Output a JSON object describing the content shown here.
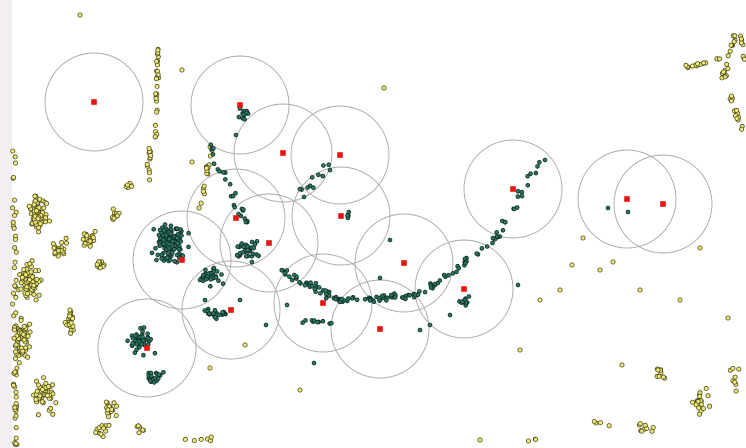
{
  "map": {
    "background_color": "#ffffff",
    "colors": {
      "circle_stroke": "#a8a8a8",
      "center_marker": "#e8140e",
      "point_fill_green": "#2f7a63",
      "point_stroke_green": "#0b2a24",
      "point_fill_yellow": "#efe97a",
      "point_stroke_yellow": "#4b4a18"
    },
    "circle_count": 17,
    "legend": "none",
    "labels": "none"
  }
}
